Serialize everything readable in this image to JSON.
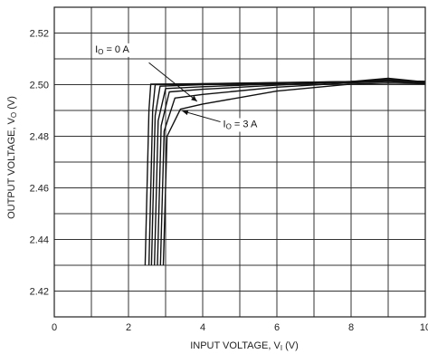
{
  "chart_data": {
    "type": "line",
    "title": "",
    "xlabel": "INPUT VOLTAGE, V",
    "xlabel_sub": "I",
    "xlabel_unit": " (V)",
    "ylabel": "OUTPUT VOLTAGE, V",
    "ylabel_sub": "O",
    "ylabel_unit": " (V)",
    "xlim": [
      0,
      10
    ],
    "ylim": [
      2.41,
      2.53
    ],
    "x_ticks": [
      0,
      2,
      4,
      6,
      8,
      10
    ],
    "x_tick_labels": [
      "0",
      "2",
      "4",
      "6",
      "8",
      "10"
    ],
    "y_ticks": [
      2.42,
      2.44,
      2.46,
      2.48,
      2.5,
      2.52
    ],
    "y_tick_labels": [
      "2.42",
      "2.44",
      "2.46",
      "2.48",
      "2.50",
      "2.52"
    ],
    "grid": true,
    "grid_minor_x": 1,
    "grid_minor_y": 0.01,
    "series": [
      {
        "values": [
          [
            2.45,
            2.43
          ],
          [
            2.55,
            2.49
          ],
          [
            2.6,
            2.5002
          ],
          [
            4.0,
            2.5004
          ],
          [
            6.0,
            2.5008
          ],
          [
            8.0,
            2.5012
          ],
          [
            9.0,
            2.5014
          ],
          [
            10.0,
            2.5013
          ]
        ]
      },
      {
        "values": [
          [
            2.55,
            2.43
          ],
          [
            2.65,
            2.49
          ],
          [
            2.72,
            2.5
          ],
          [
            4.0,
            2.5003
          ],
          [
            6.0,
            2.5007
          ],
          [
            8.0,
            2.5012
          ],
          [
            9.0,
            2.5016
          ],
          [
            10.0,
            2.5012
          ]
        ]
      },
      {
        "values": [
          [
            2.62,
            2.43
          ],
          [
            2.72,
            2.488
          ],
          [
            2.85,
            2.4994
          ],
          [
            4.0,
            2.5
          ],
          [
            6.0,
            2.5006
          ],
          [
            8.0,
            2.5012
          ],
          [
            9.0,
            2.502
          ],
          [
            10.0,
            2.5011
          ]
        ]
      },
      {
        "values": [
          [
            2.7,
            2.43
          ],
          [
            2.8,
            2.486
          ],
          [
            3.0,
            2.4985
          ],
          [
            4.0,
            2.4992
          ],
          [
            6.0,
            2.5003
          ],
          [
            8.0,
            2.5012
          ],
          [
            9.0,
            2.5025
          ],
          [
            10.0,
            2.501
          ]
        ]
      },
      {
        "values": [
          [
            2.78,
            2.43
          ],
          [
            2.88,
            2.484
          ],
          [
            3.1,
            2.4972
          ],
          [
            4.0,
            2.4982
          ],
          [
            6.0,
            2.4998
          ],
          [
            8.0,
            2.501
          ],
          [
            9.0,
            2.502
          ],
          [
            10.0,
            2.5008
          ]
        ]
      },
      {
        "values": [
          [
            2.86,
            2.43
          ],
          [
            2.96,
            2.482
          ],
          [
            3.25,
            2.4948
          ],
          [
            4.0,
            2.4962
          ],
          [
            6.0,
            2.499
          ],
          [
            8.0,
            2.5007
          ],
          [
            9.0,
            2.5012
          ],
          [
            10.0,
            2.5006
          ]
        ]
      },
      {
        "values": [
          [
            2.94,
            2.43
          ],
          [
            3.04,
            2.48
          ],
          [
            3.4,
            2.4905
          ],
          [
            4.0,
            2.4925
          ],
          [
            6.0,
            2.4975
          ],
          [
            8.0,
            2.5002
          ],
          [
            9.0,
            2.5006
          ],
          [
            10.0,
            2.5004
          ]
        ]
      }
    ],
    "annotations": [
      {
        "label_main": "I",
        "label_sub": "O",
        "label_rest": " = 0 A",
        "text_x": 1.1,
        "text_y": 2.5125,
        "arrow_from": [
          2.55,
          2.5085
        ],
        "arrow_to": [
          3.85,
          2.4935
        ]
      },
      {
        "label_main": "I",
        "label_sub": "O",
        "label_rest": " = 3 A",
        "text_x": 4.55,
        "text_y": 2.4835,
        "arrow_from": [
          4.5,
          2.4855
        ],
        "arrow_to": [
          3.45,
          2.4898
        ]
      }
    ]
  }
}
